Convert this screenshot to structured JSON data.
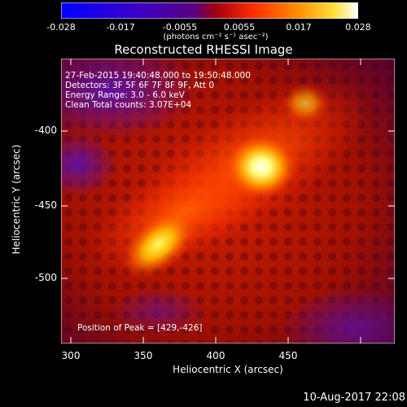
{
  "colorbar": {
    "ticks": [
      "-0.028",
      "-0.017",
      "-0.0055",
      "0.0055",
      "0.017",
      "0.028"
    ],
    "units": "(photons cm⁻² s⁻¹ asec⁻²)"
  },
  "title": "Reconstructed RHESSI Image",
  "overlay": {
    "line1": "27-Feb-2015 19:40:48.000 to 19:50:48.000",
    "line2": "Detectors: 3F 5F 6F 7F 8F 9F, Att 0",
    "line3": "Energy Range: 3.0 - 6.0 keV",
    "line4": "Clean     Total counts: 3.07E+04",
    "peak": "Position of Peak = [429,-426]"
  },
  "axes": {
    "x_title": "Heliocentric X (arcsec)",
    "y_title": "Heliocentric Y (arcsec)",
    "x_ticks": [
      "300",
      "350",
      "400",
      "450"
    ],
    "y_ticks": [
      "-400",
      "-450",
      "-500"
    ]
  },
  "footer": {
    "date": "10-Aug-2017 22:08"
  },
  "colors": {
    "cmap": [
      "#0000ff",
      "#4000c0",
      "#600090",
      "#a00000",
      "#ff4000",
      "#ff9000",
      "#ffe000",
      "#ffffff"
    ]
  }
}
